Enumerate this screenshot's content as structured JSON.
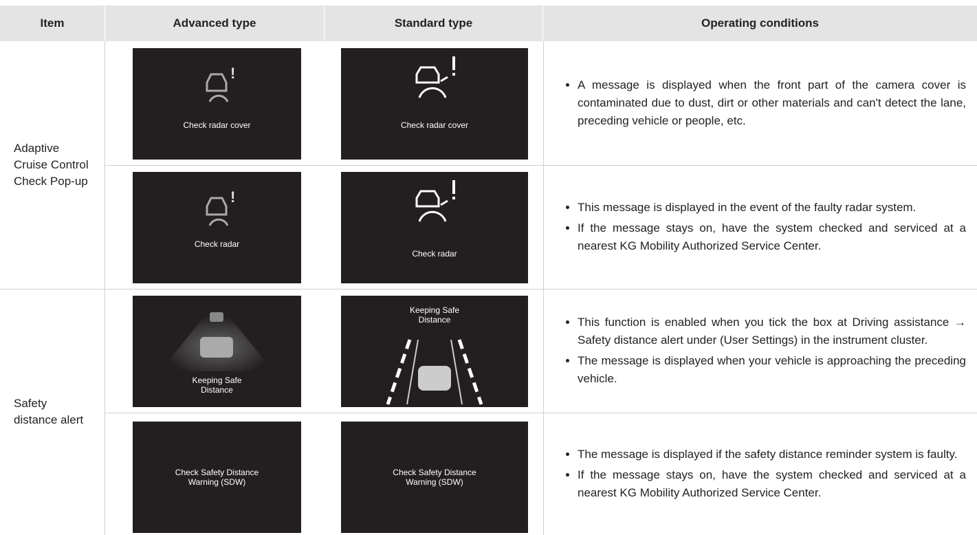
{
  "header": {
    "columns": [
      "Item",
      "Advanced type",
      "Standard type",
      "Operating conditions"
    ]
  },
  "groups": [
    {
      "item": "Adaptive Cruise Control Check Pop-up",
      "rows": [
        {
          "advanced": "Check radar cover",
          "standard": "Check radar cover",
          "conditions": [
            "A message is displayed when the front part of the camera cover is contaminated due to dust, dirt or other materials and can't detect the lane, preceding vehicle or people, etc."
          ]
        },
        {
          "advanced": "Check radar",
          "standard": "Check radar",
          "conditions": [
            "This message is displayed in the event of the faulty radar system.",
            "If the message stays on, have the system checked and serviced at a nearest KG Mobility Authorized Service Center."
          ]
        }
      ]
    },
    {
      "item": "Safety distance alert",
      "rows": [
        {
          "advanced": "Keeping Safe Distance",
          "standard": "Keeping Safe Distance",
          "conditions": [
            "This function is enabled when you tick the box at Driving assistance → Safety distance alert under  (User Settings) in the instrument cluster.",
            "The message is displayed when your vehicle is approaching the preceding vehicle."
          ]
        },
        {
          "advanced": "Check Safety Distance Warning (SDW)",
          "standard": "Check Safety Distance Warning (SDW)",
          "conditions": [
            "The message is displayed if the safety distance reminder system is faulty.",
            "If the message stays on, have the system checked and serviced at a nearest KG Mobility Authorized Service Center."
          ]
        }
      ]
    }
  ]
}
